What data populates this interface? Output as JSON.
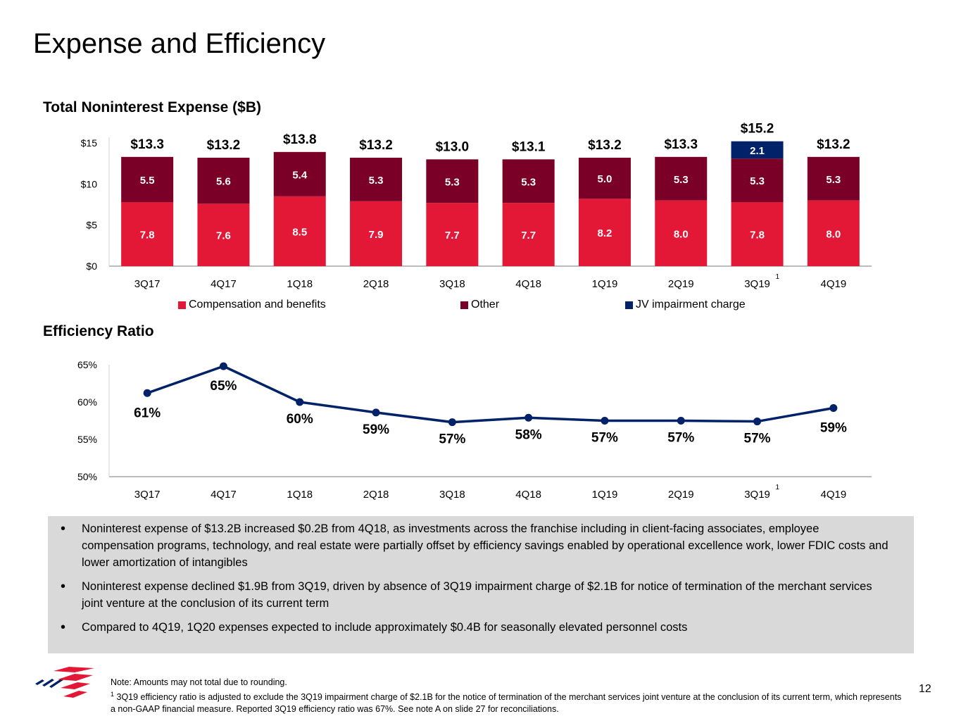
{
  "page": {
    "title": "Expense and Efficiency",
    "page_number": "12"
  },
  "colors": {
    "compensation": "#e31837",
    "other": "#7a0027",
    "jv": "#012169",
    "line": "#012169"
  },
  "chart_data": [
    {
      "type": "bar",
      "stacked": true,
      "title": "Total Noninterest Expense ($B)",
      "categories": [
        "3Q17",
        "4Q17",
        "1Q18",
        "2Q18",
        "3Q18",
        "4Q18",
        "1Q19",
        "2Q19",
        "3Q19",
        "4Q19"
      ],
      "category_superscripts": [
        "",
        "",
        "",
        "",
        "",
        "",
        "",
        "",
        "1",
        ""
      ],
      "series": [
        {
          "name": "Compensation and benefits",
          "values": [
            7.8,
            7.6,
            8.5,
            7.9,
            7.7,
            7.7,
            8.2,
            8.0,
            7.8,
            8.0
          ],
          "labels": [
            "7.8",
            "7.6",
            "8.5",
            "7.9",
            "7.7",
            "7.7",
            "8.2",
            "8.0",
            "7.8",
            "8.0"
          ]
        },
        {
          "name": "Other",
          "values": [
            5.5,
            5.6,
            5.4,
            5.3,
            5.3,
            5.3,
            5.0,
            5.3,
            5.3,
            5.3
          ],
          "labels": [
            "5.5",
            "5.6",
            "5.4",
            "5.3",
            "5.3",
            "5.3",
            "5.0",
            "5.3",
            "5.3",
            "5.3"
          ]
        },
        {
          "name": "JV impairment charge",
          "values": [
            0,
            0,
            0,
            0,
            0,
            0,
            0,
            0,
            2.1,
            0
          ],
          "labels": [
            "",
            "",
            "",
            "",
            "",
            "",
            "",
            "",
            "2.1",
            ""
          ]
        }
      ],
      "totals": [
        "$13.3",
        "$13.2",
        "$13.8",
        "$13.2",
        "$13.0",
        "$13.1",
        "$13.2",
        "$13.3",
        "$15.2",
        "$13.2"
      ],
      "ylim": [
        0,
        15
      ],
      "yticks": [
        0,
        5,
        10,
        15
      ],
      "ytick_labels": [
        "$0",
        "$5",
        "$10",
        "$15"
      ],
      "legend": [
        "Compensation and benefits",
        "Other",
        "JV impairment charge"
      ],
      "legend_position": "bottom"
    },
    {
      "type": "line",
      "title": "Efficiency Ratio",
      "categories": [
        "3Q17",
        "4Q17",
        "1Q18",
        "2Q18",
        "3Q18",
        "4Q18",
        "1Q19",
        "2Q19",
        "3Q19",
        "4Q19"
      ],
      "category_superscripts": [
        "",
        "",
        "",
        "",
        "",
        "",
        "",
        "",
        "1",
        ""
      ],
      "values": [
        61.2,
        64.8,
        60.0,
        58.6,
        57.3,
        57.9,
        57.5,
        57.5,
        57.4,
        59.2
      ],
      "labels": [
        "61%",
        "65%",
        "60%",
        "59%",
        "57%",
        "58%",
        "57%",
        "57%",
        "57%",
        "59%"
      ],
      "ylim": [
        50,
        65
      ],
      "yticks": [
        50,
        55,
        60,
        65
      ],
      "ytick_labels": [
        "50%",
        "55%",
        "60%",
        "65%"
      ]
    }
  ],
  "bullets": [
    "Noninterest expense of $13.2B increased $0.2B from 4Q18, as investments across the franchise including in client-facing associates, employee compensation programs, technology, and real estate were partially offset by efficiency savings enabled by operational excellence work, lower FDIC costs and lower amortization of intangibles",
    "Noninterest expense declined $1.9B from 3Q19, driven by absence of 3Q19 impairment charge of $2.1B for notice of termination of the merchant services joint venture at the conclusion of its current term",
    "Compared to 4Q19, 1Q20 expenses expected to include approximately $0.4B for seasonally elevated personnel costs"
  ],
  "notes": {
    "line1": "Note: Amounts may not total due to rounding.",
    "footnote_marker": "1",
    "line2": "3Q19 efficiency ratio is adjusted to exclude the 3Q19 impairment charge of $2.1B for the notice of termination of the merchant services joint venture at the conclusion of its current term, which represents a non-GAAP financial measure. Reported 3Q19 efficiency ratio was 67%. See note A on slide 27 for reconciliations."
  }
}
